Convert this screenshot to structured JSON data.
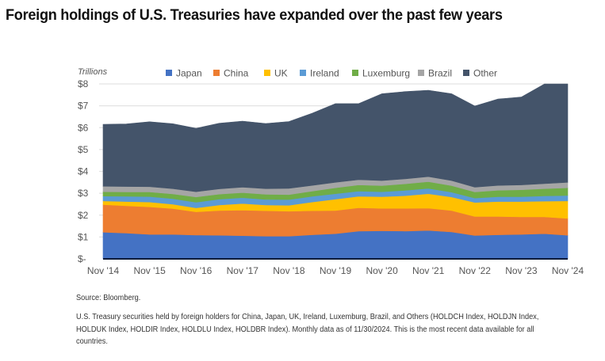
{
  "page": {
    "title": "Foreign holdings of U.S. Treasuries have expanded over the past few years",
    "source": "Source: Bloomberg.",
    "note": "U.S. Treasury securities held by foreign holders for China, Japan, UK, Ireland, Luxemburg, Brazil, and Others (HOLDCH Index, HOLDJN Index, HOLDUK Index, HOLDIR Index, HOLDLU Index, HOLDBR Index). Monthly data as of 11/30/2024. This is the most recent data available for all countries."
  },
  "chart_data": {
    "type": "area",
    "stacked": true,
    "title": "Foreign holdings of U.S. Treasuries have expanded over the past few years",
    "ylabel": "Trillions",
    "xlabel": "",
    "ylim": [
      0,
      8
    ],
    "yticks": [
      0,
      1,
      2,
      3,
      4,
      5,
      6,
      7,
      8
    ],
    "ytick_labels": [
      "$-",
      "$1",
      "$2",
      "$3",
      "$4",
      "$5",
      "$6",
      "$7",
      "$8"
    ],
    "grid": true,
    "legend_position": "top",
    "x_tick_labels": [
      "Nov '14",
      "Nov '15",
      "Nov '16",
      "Nov '17",
      "Nov '18",
      "Nov '19",
      "Nov '20",
      "Nov '21",
      "Nov '22",
      "Nov '23",
      "Nov '24"
    ],
    "x": [
      2014.83,
      2015.33,
      2015.83,
      2016.33,
      2016.83,
      2017.33,
      2017.83,
      2018.33,
      2018.83,
      2019.33,
      2019.83,
      2020.33,
      2020.83,
      2021.33,
      2021.83,
      2022.33,
      2022.83,
      2023.33,
      2023.83,
      2024.33,
      2024.83
    ],
    "xlim": [
      2014.83,
      2024.83
    ],
    "series": [
      {
        "name": "Japan",
        "color": "#4472C4",
        "values": [
          1.22,
          1.18,
          1.12,
          1.12,
          1.09,
          1.08,
          1.06,
          1.04,
          1.04,
          1.1,
          1.15,
          1.27,
          1.28,
          1.27,
          1.3,
          1.23,
          1.07,
          1.1,
          1.12,
          1.15,
          1.08
        ]
      },
      {
        "name": "China",
        "color": "#ED7D31",
        "values": [
          1.26,
          1.25,
          1.26,
          1.18,
          1.06,
          1.13,
          1.17,
          1.16,
          1.14,
          1.1,
          1.06,
          1.07,
          1.03,
          1.04,
          1.02,
          0.98,
          0.87,
          0.84,
          0.8,
          0.77,
          0.77
        ]
      },
      {
        "name": "UK",
        "color": "#FFC000",
        "values": [
          0.17,
          0.19,
          0.22,
          0.2,
          0.18,
          0.25,
          0.3,
          0.26,
          0.27,
          0.4,
          0.52,
          0.52,
          0.53,
          0.58,
          0.66,
          0.62,
          0.64,
          0.68,
          0.7,
          0.72,
          0.8
        ]
      },
      {
        "name": "Ireland",
        "color": "#5B9BD5",
        "values": [
          0.22,
          0.24,
          0.25,
          0.25,
          0.26,
          0.27,
          0.27,
          0.26,
          0.26,
          0.26,
          0.25,
          0.24,
          0.23,
          0.24,
          0.24,
          0.22,
          0.2,
          0.22,
          0.22,
          0.24,
          0.25
        ]
      },
      {
        "name": "Luxembourg",
        "color": "#70AD47",
        "values": [
          0.2,
          0.2,
          0.21,
          0.22,
          0.24,
          0.23,
          0.23,
          0.23,
          0.23,
          0.24,
          0.27,
          0.28,
          0.28,
          0.3,
          0.31,
          0.3,
          0.28,
          0.3,
          0.32,
          0.33,
          0.35
        ]
      },
      {
        "name": "Brazil",
        "color": "#A5A5A5",
        "values": [
          0.25,
          0.25,
          0.24,
          0.24,
          0.24,
          0.24,
          0.25,
          0.26,
          0.28,
          0.26,
          0.25,
          0.24,
          0.23,
          0.23,
          0.23,
          0.23,
          0.22,
          0.22,
          0.22,
          0.23,
          0.25
        ]
      },
      {
        "name": "Other",
        "color": "#44546A",
        "values": [
          2.83,
          2.86,
          2.97,
          2.97,
          2.9,
          3.0,
          3.02,
          2.98,
          3.06,
          3.3,
          3.6,
          3.48,
          3.97,
          3.99,
          3.95,
          3.97,
          3.71,
          3.95,
          4.02,
          4.56,
          4.5
        ]
      }
    ]
  }
}
